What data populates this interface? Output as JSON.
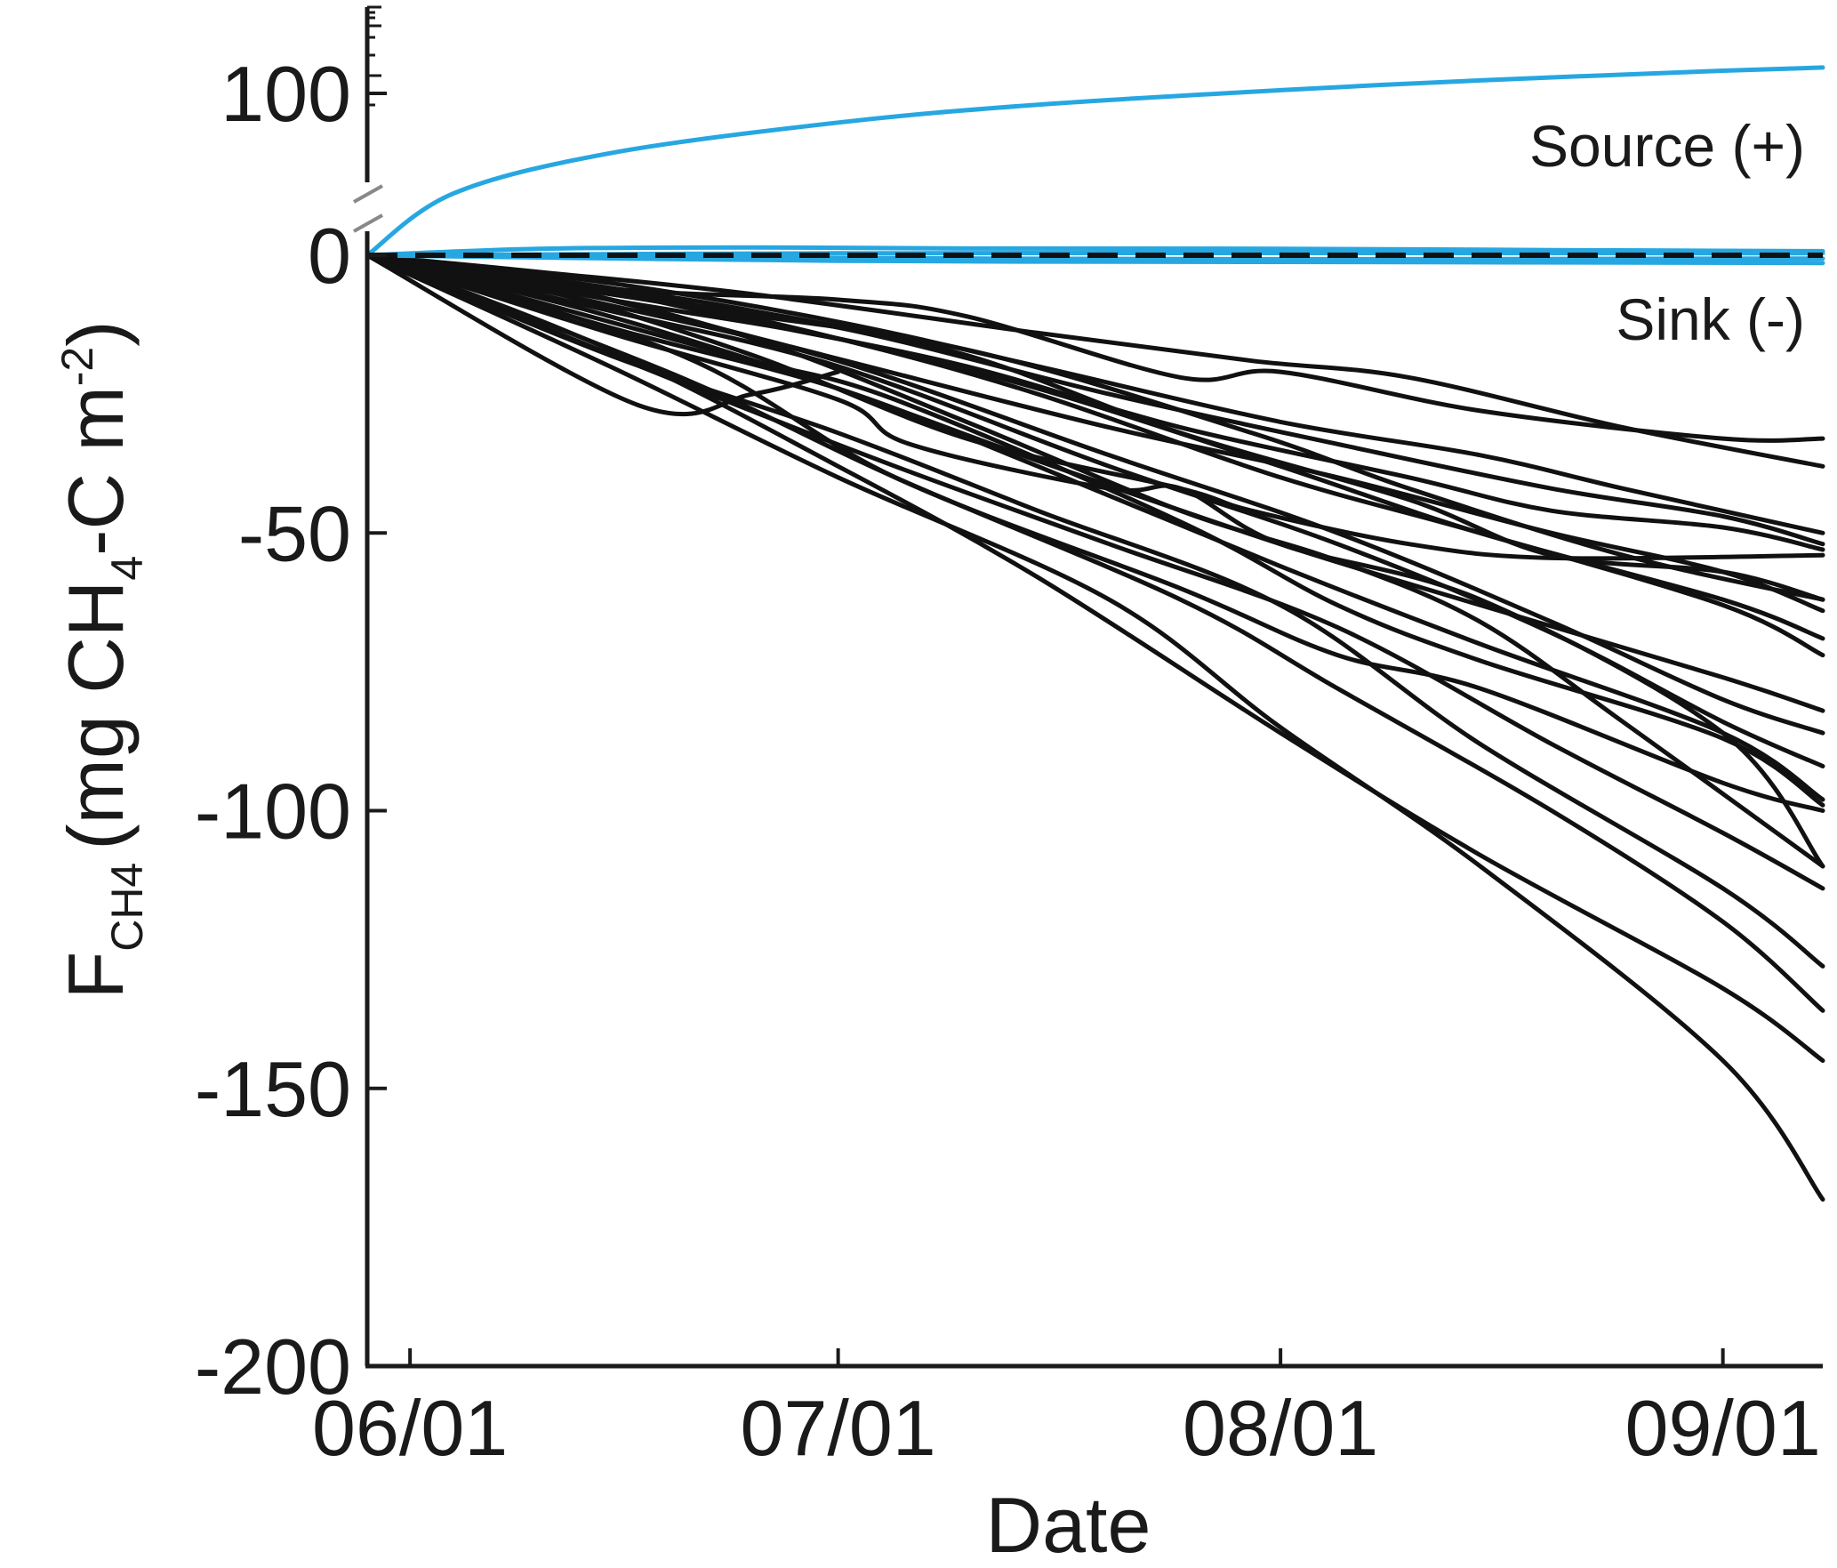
{
  "chart_data": {
    "type": "line",
    "xlabel": "Date",
    "ylabel": {
      "main": "F",
      "main_sub": "CH4",
      "paren_open": "(mg CH",
      "paren_sub": "4",
      "mid": "-C m",
      "sup": "-2",
      "paren_close": ")"
    },
    "x_tick_labels": [
      "06/01",
      "07/01",
      "08/01",
      "09/01"
    ],
    "x_ticks_date": [
      "2016-06-01",
      "2016-07-01",
      "2016-08-01",
      "2016-09-01"
    ],
    "xlim": [
      "2016-05-29",
      "2016-09-08"
    ],
    "y_tick_labels": [
      "100",
      "0",
      "-50",
      "-100",
      "-150",
      "-200"
    ],
    "y_ticks": [
      100,
      0,
      -50,
      -100,
      -150,
      -200
    ],
    "ylim": [
      -200,
      120
    ],
    "y_axis_break": {
      "between": [
        0,
        100
      ],
      "note": "broken axis, compressed upper region"
    },
    "reference_line": {
      "y": 0,
      "style": "dashed"
    },
    "annotations": {
      "source": "Source (+)",
      "sink": "Sink (-)"
    },
    "colors": {
      "source": "#27a7e1",
      "sink": "#111111",
      "axis": "#1a1a1a"
    },
    "series": [
      {
        "group": "source",
        "points": [
          [
            "2016-05-29",
            0
          ],
          [
            "2016-06-04",
            38
          ],
          [
            "2016-06-15",
            63
          ],
          [
            "2016-07-01",
            82
          ],
          [
            "2016-07-15",
            93
          ],
          [
            "2016-08-01",
            102
          ],
          [
            "2016-08-15",
            108
          ],
          [
            "2016-09-01",
            114
          ],
          [
            "2016-09-08",
            116
          ]
        ]
      },
      {
        "group": "source",
        "points": [
          [
            "2016-05-29",
            0
          ],
          [
            "2016-06-10",
            4
          ],
          [
            "2016-06-25",
            4.8
          ],
          [
            "2016-07-10",
            4.2
          ],
          [
            "2016-08-01",
            4
          ],
          [
            "2016-08-20",
            3.2
          ],
          [
            "2016-09-08",
            2.5
          ]
        ]
      },
      {
        "group": "source",
        "points": [
          [
            "2016-05-29",
            0
          ],
          [
            "2016-07-01",
            1.2
          ],
          [
            "2016-08-01",
            1.4
          ],
          [
            "2016-09-08",
            1.2
          ]
        ]
      },
      {
        "group": "source",
        "points": [
          [
            "2016-05-29",
            0
          ],
          [
            "2016-07-01",
            -1
          ],
          [
            "2016-08-01",
            -1.2
          ],
          [
            "2016-09-08",
            -1.4
          ]
        ]
      },
      {
        "group": "source",
        "points": [
          [
            "2016-05-29",
            0
          ],
          [
            "2016-07-01",
            -0.5
          ],
          [
            "2016-08-01",
            -0.7
          ],
          [
            "2016-09-08",
            -0.6
          ]
        ]
      },
      {
        "group": "sink",
        "points": [
          [
            "2016-05-29",
            0
          ],
          [
            "2016-06-17",
            -27
          ],
          [
            "2016-06-25",
            -25
          ],
          [
            "2016-07-01",
            -21
          ]
        ]
      },
      {
        "group": "sink",
        "points": [
          [
            "2016-05-29",
            0
          ],
          [
            "2016-06-10",
            -6
          ],
          [
            "2016-06-25",
            -18
          ],
          [
            "2016-07-10",
            -33
          ],
          [
            "2016-07-25",
            -42
          ],
          [
            "2016-07-30",
            -46
          ],
          [
            "2016-08-10",
            -52
          ],
          [
            "2016-08-20",
            -54.5
          ],
          [
            "2016-09-08",
            -54
          ]
        ]
      },
      {
        "group": "sink",
        "points": [
          [
            "2016-05-29",
            0
          ],
          [
            "2016-06-15",
            -14
          ],
          [
            "2016-07-01",
            -26
          ],
          [
            "2016-07-06",
            -34
          ],
          [
            "2016-07-20",
            -42
          ],
          [
            "2016-07-25",
            -42
          ],
          [
            "2016-08-01",
            -52
          ],
          [
            "2016-08-15",
            -62
          ],
          [
            "2016-09-01",
            -86
          ],
          [
            "2016-09-08",
            -110
          ]
        ]
      },
      {
        "group": "sink",
        "points": [
          [
            "2016-05-29",
            0
          ],
          [
            "2016-06-15",
            -12
          ],
          [
            "2016-06-25",
            -19
          ],
          [
            "2016-07-05",
            -26
          ],
          [
            "2016-07-25",
            -48
          ],
          [
            "2016-08-05",
            -63
          ],
          [
            "2016-08-15",
            -73
          ],
          [
            "2016-09-01",
            -87
          ],
          [
            "2016-09-08",
            -99
          ]
        ]
      },
      {
        "group": "sink",
        "points": [
          [
            "2016-05-29",
            0
          ],
          [
            "2016-06-20",
            -18
          ],
          [
            "2016-07-05",
            -40
          ],
          [
            "2016-07-25",
            -60
          ],
          [
            "2016-08-05",
            -72
          ],
          [
            "2016-08-15",
            -78
          ],
          [
            "2016-09-01",
            -95
          ],
          [
            "2016-09-08",
            -100
          ]
        ]
      },
      {
        "group": "sink",
        "points": [
          [
            "2016-05-29",
            0
          ],
          [
            "2016-06-10",
            -5
          ],
          [
            "2016-06-25",
            -15
          ],
          [
            "2016-07-10",
            -30
          ],
          [
            "2016-07-25",
            -46
          ],
          [
            "2016-08-05",
            -55
          ],
          [
            "2016-08-15",
            -66
          ],
          [
            "2016-08-25",
            -84
          ],
          [
            "2016-09-08",
            -110
          ]
        ]
      },
      {
        "group": "sink",
        "points": [
          [
            "2016-05-29",
            0
          ],
          [
            "2016-06-10",
            -4
          ],
          [
            "2016-06-25",
            -10
          ],
          [
            "2016-07-10",
            -18
          ],
          [
            "2016-07-25",
            -32
          ],
          [
            "2016-08-10",
            -44
          ],
          [
            "2016-08-20",
            -54
          ],
          [
            "2016-09-01",
            -57
          ],
          [
            "2016-09-08",
            -62
          ]
        ]
      },
      {
        "group": "sink",
        "points": [
          [
            "2016-05-29",
            0
          ],
          [
            "2016-06-15",
            -6
          ],
          [
            "2016-07-01",
            -8
          ],
          [
            "2016-07-10",
            -11
          ],
          [
            "2016-07-25",
            -22
          ],
          [
            "2016-08-01",
            -21
          ],
          [
            "2016-08-15",
            -28
          ],
          [
            "2016-09-01",
            -33
          ],
          [
            "2016-09-08",
            -33
          ]
        ]
      },
      {
        "group": "sink",
        "points": [
          [
            "2016-05-29",
            0
          ],
          [
            "2016-06-10",
            -3
          ],
          [
            "2016-06-25",
            -7
          ],
          [
            "2016-07-15",
            -14
          ],
          [
            "2016-07-30",
            -19
          ],
          [
            "2016-08-10",
            -22
          ],
          [
            "2016-08-25",
            -31
          ],
          [
            "2016-09-08",
            -38
          ]
        ]
      },
      {
        "group": "sink",
        "points": [
          [
            "2016-05-29",
            0
          ],
          [
            "2016-06-15",
            -5
          ],
          [
            "2016-07-01",
            -12
          ],
          [
            "2016-07-15",
            -20
          ],
          [
            "2016-08-01",
            -30
          ],
          [
            "2016-08-15",
            -36
          ],
          [
            "2016-08-25",
            -42
          ],
          [
            "2016-09-08",
            -50
          ]
        ]
      },
      {
        "group": "sink",
        "points": [
          [
            "2016-05-29",
            0
          ],
          [
            "2016-06-10",
            -4
          ],
          [
            "2016-06-25",
            -12
          ],
          [
            "2016-07-10",
            -20
          ],
          [
            "2016-07-25",
            -31
          ],
          [
            "2016-08-10",
            -40
          ],
          [
            "2016-08-20",
            -46
          ],
          [
            "2016-09-01",
            -49
          ],
          [
            "2016-09-08",
            -53
          ]
        ]
      },
      {
        "group": "sink",
        "points": [
          [
            "2016-05-29",
            0
          ],
          [
            "2016-06-10",
            -5
          ],
          [
            "2016-06-30",
            -18
          ],
          [
            "2016-07-20",
            -31
          ],
          [
            "2016-08-05",
            -40
          ],
          [
            "2016-08-20",
            -50
          ],
          [
            "2016-09-01",
            -57
          ],
          [
            "2016-09-08",
            -64
          ]
        ]
      },
      {
        "group": "sink",
        "points": [
          [
            "2016-05-29",
            0
          ],
          [
            "2016-06-15",
            -6
          ],
          [
            "2016-07-01",
            -15
          ],
          [
            "2016-07-15",
            -25
          ],
          [
            "2016-08-01",
            -40
          ],
          [
            "2016-08-15",
            -50
          ],
          [
            "2016-09-01",
            -63
          ],
          [
            "2016-09-08",
            -72
          ]
        ]
      },
      {
        "group": "sink",
        "points": [
          [
            "2016-05-29",
            0
          ],
          [
            "2016-06-15",
            -11
          ],
          [
            "2016-07-01",
            -24
          ],
          [
            "2016-07-15",
            -37
          ],
          [
            "2016-08-01",
            -52
          ],
          [
            "2016-08-15",
            -63
          ],
          [
            "2016-09-01",
            -76
          ],
          [
            "2016-09-08",
            -82
          ]
        ]
      },
      {
        "group": "sink",
        "points": [
          [
            "2016-05-29",
            0
          ],
          [
            "2016-06-15",
            -13
          ],
          [
            "2016-07-01",
            -24
          ],
          [
            "2016-07-15",
            -38
          ],
          [
            "2016-08-01",
            -56
          ],
          [
            "2016-08-15",
            -70
          ],
          [
            "2016-09-01",
            -86
          ],
          [
            "2016-09-08",
            -98
          ]
        ]
      },
      {
        "group": "sink",
        "points": [
          [
            "2016-05-29",
            0
          ],
          [
            "2016-06-20",
            -23
          ],
          [
            "2016-07-05",
            -38
          ],
          [
            "2016-07-20",
            -52
          ],
          [
            "2016-08-05",
            -67
          ],
          [
            "2016-08-20",
            -88
          ],
          [
            "2016-09-01",
            -104
          ],
          [
            "2016-09-08",
            -114
          ]
        ]
      },
      {
        "group": "sink",
        "points": [
          [
            "2016-05-29",
            0
          ],
          [
            "2016-06-15",
            -18
          ],
          [
            "2016-07-01",
            -32
          ],
          [
            "2016-07-15",
            -46
          ],
          [
            "2016-08-01",
            -63
          ],
          [
            "2016-08-15",
            -88
          ],
          [
            "2016-09-01",
            -114
          ],
          [
            "2016-09-08",
            -128
          ]
        ]
      },
      {
        "group": "sink",
        "points": [
          [
            "2016-05-29",
            0
          ],
          [
            "2016-06-20",
            -22
          ],
          [
            "2016-07-05",
            -40
          ],
          [
            "2016-07-25",
            -62
          ],
          [
            "2016-08-05",
            -78
          ],
          [
            "2016-08-20",
            -100
          ],
          [
            "2016-09-01",
            -120
          ],
          [
            "2016-09-08",
            -136
          ]
        ]
      },
      {
        "group": "sink",
        "points": [
          [
            "2016-05-29",
            0
          ],
          [
            "2016-06-15",
            -17
          ],
          [
            "2016-07-01",
            -38
          ],
          [
            "2016-07-15",
            -58
          ],
          [
            "2016-08-01",
            -86
          ],
          [
            "2016-08-15",
            -108
          ],
          [
            "2016-09-01",
            -132
          ],
          [
            "2016-09-08",
            -145
          ]
        ]
      },
      {
        "group": "sink",
        "points": [
          [
            "2016-05-29",
            0
          ],
          [
            "2016-06-15",
            -20
          ],
          [
            "2016-07-01",
            -40
          ],
          [
            "2016-07-20",
            -62
          ],
          [
            "2016-08-01",
            -85
          ],
          [
            "2016-08-15",
            -110
          ],
          [
            "2016-09-01",
            -145
          ],
          [
            "2016-09-08",
            -170
          ]
        ]
      },
      {
        "group": "sink",
        "points": [
          [
            "2016-05-29",
            0
          ],
          [
            "2016-06-15",
            -8
          ],
          [
            "2016-07-01",
            -15
          ],
          [
            "2016-07-15",
            -24
          ],
          [
            "2016-08-01",
            -38
          ],
          [
            "2016-08-15",
            -50
          ],
          [
            "2016-09-01",
            -62
          ],
          [
            "2016-09-08",
            -69
          ]
        ]
      },
      {
        "group": "sink",
        "points": [
          [
            "2016-05-29",
            0
          ],
          [
            "2016-06-15",
            -7
          ],
          [
            "2016-07-01",
            -13
          ],
          [
            "2016-07-20",
            -25
          ],
          [
            "2016-08-05",
            -34
          ],
          [
            "2016-08-20",
            -42
          ],
          [
            "2016-09-01",
            -47
          ],
          [
            "2016-09-08",
            -52
          ]
        ]
      },
      {
        "group": "sink",
        "points": [
          [
            "2016-05-29",
            0
          ],
          [
            "2016-06-20",
            -9
          ],
          [
            "2016-07-10",
            -17
          ],
          [
            "2016-07-30",
            -32
          ],
          [
            "2016-08-10",
            -42
          ],
          [
            "2016-08-25",
            -54
          ],
          [
            "2016-09-08",
            -62
          ]
        ]
      },
      {
        "group": "sink",
        "points": [
          [
            "2016-05-29",
            0
          ],
          [
            "2016-06-15",
            -9
          ],
          [
            "2016-07-01",
            -19
          ],
          [
            "2016-07-20",
            -36
          ],
          [
            "2016-08-05",
            -50
          ],
          [
            "2016-08-20",
            -66
          ],
          [
            "2016-09-01",
            -80
          ],
          [
            "2016-09-08",
            -86
          ]
        ]
      },
      {
        "group": "sink",
        "points": [
          [
            "2016-05-29",
            0
          ],
          [
            "2016-06-15",
            -10
          ],
          [
            "2016-07-01",
            -20
          ],
          [
            "2016-07-20",
            -38
          ],
          [
            "2016-08-05",
            -52
          ],
          [
            "2016-08-20",
            -68
          ],
          [
            "2016-09-01",
            -84
          ],
          [
            "2016-09-08",
            -92
          ]
        ]
      }
    ]
  }
}
